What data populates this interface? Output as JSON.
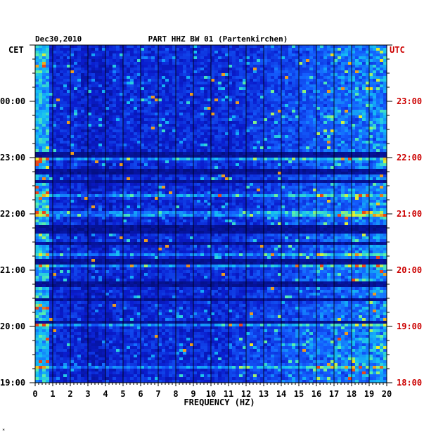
{
  "chart_data": {
    "type": "heatmap",
    "title": {
      "date": "Dec30,2010",
      "station": "PART HHZ BW 01 (Partenkirchen)"
    },
    "xlabel": "FREQUENCY (HZ)",
    "xlim": [
      0,
      20
    ],
    "x_ticks": [
      "0",
      "1",
      "2",
      "3",
      "4",
      "5",
      "6",
      "7",
      "8",
      "9",
      "10",
      "11",
      "12",
      "13",
      "14",
      "15",
      "16",
      "17",
      "18",
      "19",
      "20"
    ],
    "left_axis": {
      "timezone_label": "CET",
      "tick_labels": [
        "00:00",
        "23:00",
        "22:00",
        "21:00",
        "20:00",
        "19:00"
      ]
    },
    "right_axis": {
      "timezone_label": "UTC",
      "tick_labels": [
        "23:00",
        "22:00",
        "21:00",
        "20:00",
        "19:00",
        "18:00"
      ]
    },
    "time_span_hours": 6,
    "grid": true,
    "footnote": "*"
  },
  "colors": {
    "left_axis_text": "#000000",
    "right_axis_text": "#cc0000",
    "background": "#ffffff",
    "plot_base": "#0a1fd0",
    "dark_bands": "#02107a"
  }
}
